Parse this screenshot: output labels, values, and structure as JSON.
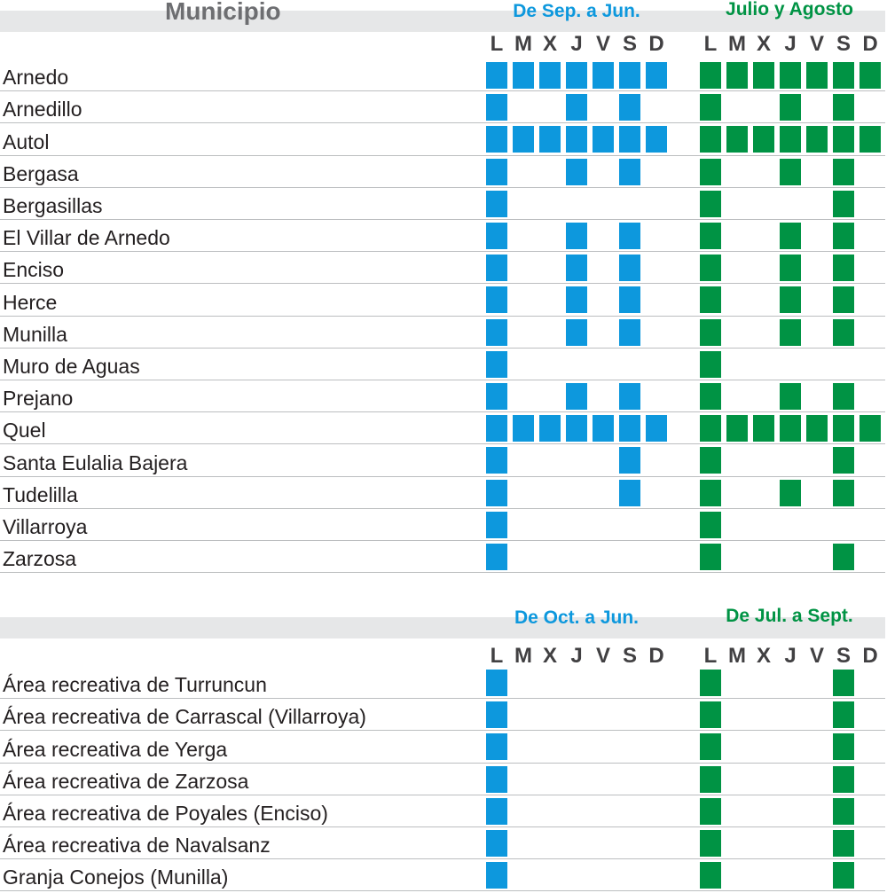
{
  "colors": {
    "blue": "#0d98dd",
    "green": "#009344",
    "band": "#e6e7e8",
    "rule": "#bcbec0"
  },
  "section1": {
    "title": "Municipio",
    "period_a": "De Sep. a Jun.",
    "period_b": "Julio y Agosto",
    "days": [
      "L",
      "M",
      "X",
      "J",
      "V",
      "S",
      "D"
    ],
    "rows": [
      {
        "name": "Arnedo",
        "a": [
          1,
          1,
          1,
          1,
          1,
          1,
          1
        ],
        "b": [
          1,
          1,
          1,
          1,
          1,
          1,
          1
        ]
      },
      {
        "name": "Arnedillo",
        "a": [
          1,
          0,
          0,
          1,
          0,
          1,
          0
        ],
        "b": [
          1,
          0,
          0,
          1,
          0,
          1,
          0
        ]
      },
      {
        "name": "Autol",
        "a": [
          1,
          1,
          1,
          1,
          1,
          1,
          1
        ],
        "b": [
          1,
          1,
          1,
          1,
          1,
          1,
          1
        ]
      },
      {
        "name": "Bergasa",
        "a": [
          1,
          0,
          0,
          1,
          0,
          1,
          0
        ],
        "b": [
          1,
          0,
          0,
          1,
          0,
          1,
          0
        ]
      },
      {
        "name": "Bergasillas",
        "a": [
          1,
          0,
          0,
          0,
          0,
          0,
          0
        ],
        "b": [
          1,
          0,
          0,
          0,
          0,
          1,
          0
        ]
      },
      {
        "name": "El Villar de Arnedo",
        "a": [
          1,
          0,
          0,
          1,
          0,
          1,
          0
        ],
        "b": [
          1,
          0,
          0,
          1,
          0,
          1,
          0
        ]
      },
      {
        "name": "Enciso",
        "a": [
          1,
          0,
          0,
          1,
          0,
          1,
          0
        ],
        "b": [
          1,
          0,
          0,
          1,
          0,
          1,
          0
        ]
      },
      {
        "name": "Herce",
        "a": [
          1,
          0,
          0,
          1,
          0,
          1,
          0
        ],
        "b": [
          1,
          0,
          0,
          1,
          0,
          1,
          0
        ]
      },
      {
        "name": "Munilla",
        "a": [
          1,
          0,
          0,
          1,
          0,
          1,
          0
        ],
        "b": [
          1,
          0,
          0,
          1,
          0,
          1,
          0
        ]
      },
      {
        "name": "Muro de Aguas",
        "a": [
          1,
          0,
          0,
          0,
          0,
          0,
          0
        ],
        "b": [
          1,
          0,
          0,
          0,
          0,
          0,
          0
        ]
      },
      {
        "name": "Prejano",
        "a": [
          1,
          0,
          0,
          1,
          0,
          1,
          0
        ],
        "b": [
          1,
          0,
          0,
          1,
          0,
          1,
          0
        ]
      },
      {
        "name": "Quel",
        "a": [
          1,
          1,
          1,
          1,
          1,
          1,
          1
        ],
        "b": [
          1,
          1,
          1,
          1,
          1,
          1,
          1
        ]
      },
      {
        "name": "Santa Eulalia Bajera",
        "a": [
          1,
          0,
          0,
          0,
          0,
          1,
          0
        ],
        "b": [
          1,
          0,
          0,
          0,
          0,
          1,
          0
        ]
      },
      {
        "name": "Tudelilla",
        "a": [
          1,
          0,
          0,
          0,
          0,
          1,
          0
        ],
        "b": [
          1,
          0,
          0,
          1,
          0,
          1,
          0
        ]
      },
      {
        "name": "Villarroya",
        "a": [
          1,
          0,
          0,
          0,
          0,
          0,
          0
        ],
        "b": [
          1,
          0,
          0,
          0,
          0,
          0,
          0
        ]
      },
      {
        "name": "Zarzosa",
        "a": [
          1,
          0,
          0,
          0,
          0,
          0,
          0
        ],
        "b": [
          1,
          0,
          0,
          0,
          0,
          1,
          0
        ]
      }
    ]
  },
  "section2": {
    "period_a": "De Oct. a Jun.",
    "period_b": "De Jul. a Sept.",
    "days": [
      "L",
      "M",
      "X",
      "J",
      "V",
      "S",
      "D"
    ],
    "rows": [
      {
        "name": "Área recreativa de Turruncun",
        "a": [
          1,
          0,
          0,
          0,
          0,
          0,
          0
        ],
        "b": [
          1,
          0,
          0,
          0,
          0,
          1,
          0
        ]
      },
      {
        "name": "Área recreativa de Carrascal (Villarroya)",
        "a": [
          1,
          0,
          0,
          0,
          0,
          0,
          0
        ],
        "b": [
          1,
          0,
          0,
          0,
          0,
          1,
          0
        ]
      },
      {
        "name": "Área recreativa de Yerga",
        "a": [
          1,
          0,
          0,
          0,
          0,
          0,
          0
        ],
        "b": [
          1,
          0,
          0,
          0,
          0,
          1,
          0
        ]
      },
      {
        "name": "Área recreativa de Zarzosa",
        "a": [
          1,
          0,
          0,
          0,
          0,
          0,
          0
        ],
        "b": [
          1,
          0,
          0,
          0,
          0,
          1,
          0
        ]
      },
      {
        "name": "Área recreativa de Poyales (Enciso)",
        "a": [
          1,
          0,
          0,
          0,
          0,
          0,
          0
        ],
        "b": [
          1,
          0,
          0,
          0,
          0,
          1,
          0
        ]
      },
      {
        "name": "Área recreativa de Navalsanz",
        "a": [
          1,
          0,
          0,
          0,
          0,
          0,
          0
        ],
        "b": [
          1,
          0,
          0,
          0,
          0,
          1,
          0
        ]
      },
      {
        "name": "Granja Conejos (Munilla)",
        "a": [
          1,
          0,
          0,
          0,
          0,
          0,
          0
        ],
        "b": [
          1,
          0,
          0,
          0,
          0,
          1,
          0
        ]
      }
    ]
  }
}
